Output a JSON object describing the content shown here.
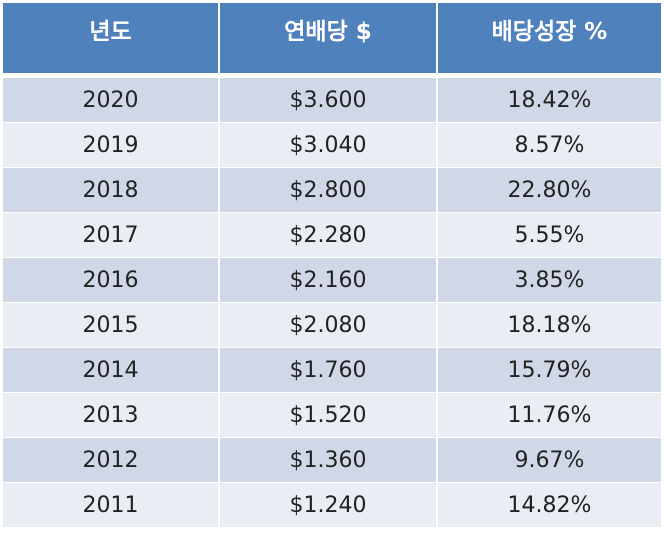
{
  "table": {
    "headers": [
      "년도",
      "연배당 $",
      "배당성장 %"
    ],
    "rows": [
      [
        "2020",
        "$3.600",
        "18.42%"
      ],
      [
        "2019",
        "$3.040",
        "8.57%"
      ],
      [
        "2018",
        "$2.800",
        "22.80%"
      ],
      [
        "2017",
        "$2.280",
        "5.55%"
      ],
      [
        "2016",
        "$2.160",
        "3.85%"
      ],
      [
        "2015",
        "$2.080",
        "18.18%"
      ],
      [
        "2014",
        "$1.760",
        "15.79%"
      ],
      [
        "2013",
        "$1.520",
        "11.76%"
      ],
      [
        "2012",
        "$1.360",
        "9.67%"
      ],
      [
        "2011",
        "$1.240",
        "14.82%"
      ]
    ]
  },
  "colors": {
    "header_background": "#4f81bd",
    "header_text": "#ffffff",
    "row_band_dark": "#d0d8e8",
    "row_band_light": "#e9edf4"
  }
}
